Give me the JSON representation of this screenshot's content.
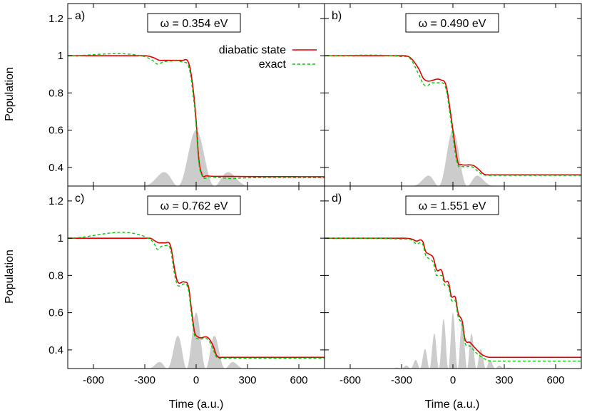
{
  "figure": {
    "ylabel": "Population",
    "xlabel": "Time (a.u.)",
    "legend": {
      "entries": [
        {
          "label": "diabatic state",
          "color": "#e00000",
          "style": "solid"
        },
        {
          "label": "exact",
          "color": "#00cc00",
          "style": "dashed"
        }
      ],
      "placement": "top-right of panel a"
    }
  },
  "chart_data": [
    {
      "type": "line",
      "panel": "a)",
      "omega_label": "ω = 0.354 eV",
      "omega_eV": 0.354,
      "xlim": [
        -750,
        750
      ],
      "ylim": [
        0.3,
        1.28
      ],
      "x_ticks": [
        -600,
        -300,
        0,
        300,
        600
      ],
      "y_ticks": [
        0.4,
        0.6,
        0.8,
        1,
        1.2
      ],
      "y_tick_labels": [
        "0.4",
        "0.6",
        "0.8",
        "1",
        "1.2"
      ],
      "series": [
        {
          "name": "diabatic state",
          "points": [
            [
              -750,
              1.0
            ],
            [
              -300,
              1.0
            ],
            [
              -250,
              0.99
            ],
            [
              -210,
              0.975
            ],
            [
              -80,
              0.975
            ],
            [
              -40,
              0.95
            ],
            [
              -15,
              0.8
            ],
            [
              0,
              0.65
            ],
            [
              15,
              0.45
            ],
            [
              35,
              0.36
            ],
            [
              60,
              0.355
            ],
            [
              200,
              0.352
            ],
            [
              750,
              0.35
            ]
          ]
        },
        {
          "name": "exact",
          "points": [
            [
              -750,
              1.0
            ],
            [
              -300,
              0.995
            ],
            [
              -255,
              0.975
            ],
            [
              -225,
              0.955
            ],
            [
              -195,
              0.965
            ],
            [
              -170,
              0.97
            ],
            [
              -80,
              0.965
            ],
            [
              -40,
              0.93
            ],
            [
              -15,
              0.77
            ],
            [
              0,
              0.62
            ],
            [
              15,
              0.43
            ],
            [
              35,
              0.355
            ],
            [
              80,
              0.35
            ],
            [
              150,
              0.344
            ],
            [
              210,
              0.34
            ],
            [
              260,
              0.343
            ],
            [
              750,
              0.345
            ]
          ]
        }
      ],
      "pulse": {
        "envelope_amplitude": 0.3,
        "envelope_width": 170,
        "period": 216,
        "baseline": 0.3
      }
    },
    {
      "type": "line",
      "panel": "b)",
      "omega_label": "ω = 0.490 eV",
      "omega_eV": 0.49,
      "xlim": [
        -750,
        750
      ],
      "ylim": [
        0.3,
        1.28
      ],
      "x_ticks": [
        -600,
        -300,
        0,
        300,
        600
      ],
      "y_ticks": [
        0.4,
        0.6,
        0.8,
        1,
        1.2
      ],
      "series": [
        {
          "name": "diabatic state",
          "points": [
            [
              -750,
              1.0
            ],
            [
              -300,
              1.0
            ],
            [
              -250,
              0.99
            ],
            [
              -200,
              0.93
            ],
            [
              -170,
              0.875
            ],
            [
              -70,
              0.87
            ],
            [
              -40,
              0.84
            ],
            [
              -15,
              0.7
            ],
            [
              0,
              0.6
            ],
            [
              15,
              0.5
            ],
            [
              30,
              0.425
            ],
            [
              50,
              0.415
            ],
            [
              120,
              0.41
            ],
            [
              150,
              0.39
            ],
            [
              180,
              0.365
            ],
            [
              220,
              0.36
            ],
            [
              750,
              0.36
            ]
          ]
        },
        {
          "name": "exact",
          "points": [
            [
              -750,
              1.0
            ],
            [
              -300,
              0.995
            ],
            [
              -250,
              0.985
            ],
            [
              -200,
              0.9
            ],
            [
              -170,
              0.845
            ],
            [
              -150,
              0.84
            ],
            [
              -120,
              0.855
            ],
            [
              -70,
              0.855
            ],
            [
              -40,
              0.82
            ],
            [
              -15,
              0.67
            ],
            [
              0,
              0.57
            ],
            [
              15,
              0.47
            ],
            [
              30,
              0.41
            ],
            [
              50,
              0.405
            ],
            [
              120,
              0.4
            ],
            [
              150,
              0.375
            ],
            [
              180,
              0.36
            ],
            [
              220,
              0.357
            ],
            [
              750,
              0.357
            ]
          ]
        }
      ],
      "pulse": {
        "envelope_amplitude": 0.3,
        "envelope_width": 120,
        "period": 170,
        "baseline": 0.3
      }
    },
    {
      "type": "line",
      "panel": "c)",
      "omega_label": "ω = 0.762 eV",
      "omega_eV": 0.762,
      "xlim": [
        -750,
        750
      ],
      "ylim": [
        0.3,
        1.28
      ],
      "x_ticks": [
        -600,
        -300,
        0,
        300,
        600
      ],
      "y_ticks": [
        0.4,
        0.6,
        0.8,
        1,
        1.2
      ],
      "series": [
        {
          "name": "diabatic state",
          "points": [
            [
              -750,
              1.0
            ],
            [
              -270,
              1.0
            ],
            [
              -240,
              0.985
            ],
            [
              -215,
              0.975
            ],
            [
              -180,
              0.975
            ],
            [
              -150,
              0.96
            ],
            [
              -125,
              0.83
            ],
            [
              -110,
              0.77
            ],
            [
              -70,
              0.765
            ],
            [
              -45,
              0.74
            ],
            [
              -25,
              0.6
            ],
            [
              -10,
              0.5
            ],
            [
              10,
              0.47
            ],
            [
              70,
              0.465
            ],
            [
              100,
              0.42
            ],
            [
              120,
              0.37
            ],
            [
              150,
              0.36
            ],
            [
              750,
              0.36
            ]
          ]
        },
        {
          "name": "exact",
          "points": [
            [
              -750,
              1.0
            ],
            [
              -270,
              0.995
            ],
            [
              -245,
              0.97
            ],
            [
              -225,
              0.94
            ],
            [
              -205,
              0.955
            ],
            [
              -180,
              0.96
            ],
            [
              -150,
              0.94
            ],
            [
              -125,
              0.8
            ],
            [
              -110,
              0.75
            ],
            [
              -90,
              0.745
            ],
            [
              -70,
              0.755
            ],
            [
              -45,
              0.72
            ],
            [
              -25,
              0.57
            ],
            [
              -10,
              0.48
            ],
            [
              10,
              0.46
            ],
            [
              70,
              0.455
            ],
            [
              100,
              0.4
            ],
            [
              120,
              0.36
            ],
            [
              150,
              0.355
            ],
            [
              750,
              0.355
            ]
          ]
        }
      ],
      "pulse": {
        "envelope_amplitude": 0.3,
        "envelope_width": 150,
        "period": 113,
        "baseline": 0.3
      }
    },
    {
      "type": "line",
      "panel": "d)",
      "omega_label": "ω = 1.551 eV",
      "omega_eV": 1.551,
      "xlim": [
        -750,
        750
      ],
      "ylim": [
        0.3,
        1.28
      ],
      "x_ticks": [
        -600,
        -300,
        0,
        300,
        600
      ],
      "y_ticks": [
        0.4,
        0.6,
        0.8,
        1,
        1.2
      ],
      "series": [
        {
          "name": "diabatic state",
          "points": [
            [
              -750,
              1.0
            ],
            [
              -300,
              1.0
            ],
            [
              -240,
              0.995
            ],
            [
              -215,
              0.985
            ],
            [
              -175,
              0.98
            ],
            [
              -160,
              0.93
            ],
            [
              -140,
              0.915
            ],
            [
              -115,
              0.895
            ],
            [
              -95,
              0.83
            ],
            [
              -65,
              0.825
            ],
            [
              -50,
              0.77
            ],
            [
              -25,
              0.76
            ],
            [
              -10,
              0.69
            ],
            [
              15,
              0.68
            ],
            [
              30,
              0.6
            ],
            [
              55,
              0.55
            ],
            [
              70,
              0.46
            ],
            [
              100,
              0.44
            ],
            [
              130,
              0.41
            ],
            [
              170,
              0.375
            ],
            [
              220,
              0.36
            ],
            [
              750,
              0.36
            ]
          ]
        },
        {
          "name": "exact",
          "points": [
            [
              -750,
              1.0
            ],
            [
              -300,
              0.995
            ],
            [
              -240,
              0.99
            ],
            [
              -215,
              0.97
            ],
            [
              -175,
              0.965
            ],
            [
              -160,
              0.91
            ],
            [
              -140,
              0.89
            ],
            [
              -115,
              0.87
            ],
            [
              -95,
              0.8
            ],
            [
              -65,
              0.8
            ],
            [
              -50,
              0.75
            ],
            [
              -25,
              0.74
            ],
            [
              -10,
              0.67
            ],
            [
              15,
              0.66
            ],
            [
              30,
              0.58
            ],
            [
              55,
              0.53
            ],
            [
              70,
              0.44
            ],
            [
              100,
              0.42
            ],
            [
              130,
              0.39
            ],
            [
              170,
              0.36
            ],
            [
              220,
              0.34
            ],
            [
              750,
              0.34
            ]
          ]
        }
      ],
      "pulse": {
        "envelope_amplitude": 0.3,
        "envelope_width": 160,
        "period": 55,
        "baseline": 0.3
      }
    }
  ]
}
